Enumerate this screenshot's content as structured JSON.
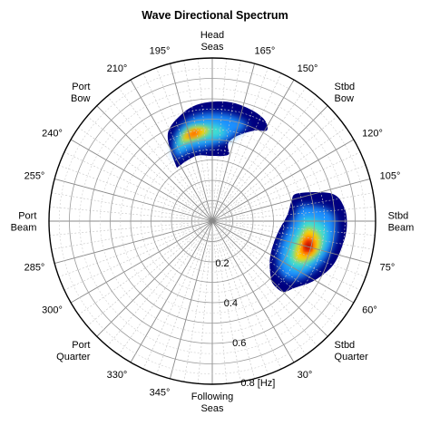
{
  "chart_data": {
    "type": "heatmap",
    "title": "Wave Directional Spectrum",
    "radial_axis": {
      "unit_label": "[Hz]",
      "range": [
        0,
        0.8
      ],
      "ticks": [
        0.2,
        0.4,
        0.6,
        0.8
      ],
      "tick_labels": [
        "0.2",
        "0.4",
        "0.6",
        "0.8 [Hz]"
      ],
      "grid": true
    },
    "angular_axis": {
      "orientation": "180° at top (head seas), angle decreasing clockwise",
      "direction_labels": [
        {
          "angle": 180,
          "text": [
            "Head",
            "Seas"
          ]
        },
        {
          "angle": 135,
          "text": [
            "Stbd",
            "Bow"
          ]
        },
        {
          "angle": 90,
          "text": [
            "Stbd",
            "Beam"
          ]
        },
        {
          "angle": 45,
          "text": [
            "Stbd",
            "Quarter"
          ]
        },
        {
          "angle": 0,
          "text": [
            "Following",
            "Seas"
          ]
        },
        {
          "angle": 315,
          "text": [
            "Port",
            "Quarter"
          ]
        },
        {
          "angle": 270,
          "text": [
            "Port",
            "Beam"
          ]
        },
        {
          "angle": 225,
          "text": [
            "Port",
            "Bow"
          ]
        }
      ],
      "degree_labels": [
        {
          "angle": 165,
          "text": "165°"
        },
        {
          "angle": 150,
          "text": "150°"
        },
        {
          "angle": 120,
          "text": "120°"
        },
        {
          "angle": 105,
          "text": "105°"
        },
        {
          "angle": 75,
          "text": "75°"
        },
        {
          "angle": 60,
          "text": "60°"
        },
        {
          "angle": 30,
          "text": "30°"
        },
        {
          "angle": 345,
          "text": "345°"
        },
        {
          "angle": 330,
          "text": "330°"
        },
        {
          "angle": 300,
          "text": "300°"
        },
        {
          "angle": 285,
          "text": "285°"
        },
        {
          "angle": 255,
          "text": "255°"
        },
        {
          "angle": 240,
          "text": "240°"
        },
        {
          "angle": 210,
          "text": "210°"
        },
        {
          "angle": 195,
          "text": "195°"
        }
      ],
      "minor_spoke_step_deg": 5
    },
    "colormap": "jet",
    "colors": {
      "low": "#00007f",
      "mid_low": "#00b0ff",
      "mid": "#7fff7f",
      "mid_high": "#ffd000",
      "high": "#7f0000"
    },
    "energy_regions": [
      {
        "name_hint": "bow sea",
        "outline": [
          [
            213,
            0.33
          ],
          [
            207,
            0.48
          ],
          [
            195,
            0.55
          ],
          [
            185,
            0.58
          ],
          [
            173,
            0.59
          ],
          [
            162,
            0.58
          ],
          [
            153,
            0.56
          ],
          [
            149,
            0.52
          ],
          [
            155,
            0.49
          ],
          [
            163,
            0.44
          ],
          [
            168,
            0.4
          ],
          [
            168,
            0.37
          ],
          [
            166,
            0.34
          ],
          [
            170,
            0.325
          ],
          [
            181,
            0.32
          ],
          [
            193,
            0.33
          ],
          [
            205,
            0.32
          ],
          [
            211,
            0.315
          ]
        ],
        "levels": [
          {
            "outline": [
              [
                210,
                0.36
              ],
              [
                204,
                0.45
              ],
              [
                194,
                0.51
              ],
              [
                184,
                0.53
              ],
              [
                173,
                0.53
              ],
              [
                165,
                0.52
              ],
              [
                160,
                0.5
              ],
              [
                164,
                0.45
              ],
              [
                168,
                0.41
              ],
              [
                176,
                0.38
              ],
              [
                186,
                0.36
              ],
              [
                198,
                0.36
              ]
            ],
            "color": "#1e90ff"
          },
          {
            "outline": [
              [
                206,
                0.39
              ],
              [
                201,
                0.45
              ],
              [
                193,
                0.48
              ],
              [
                184,
                0.48
              ],
              [
                176,
                0.47
              ],
              [
                171,
                0.44
              ],
              [
                176,
                0.41
              ],
              [
                186,
                0.4
              ],
              [
                196,
                0.4
              ]
            ],
            "color": "#40e0d0"
          },
          {
            "outline": [
              [
                201,
                0.42
              ],
              [
                196,
                0.46
              ],
              [
                189,
                0.47
              ],
              [
                182,
                0.45
              ],
              [
                186,
                0.42
              ],
              [
                195,
                0.41
              ]
            ],
            "color": "#ffd000"
          },
          {
            "outline": [
              [
                197,
                0.43
              ],
              [
                192,
                0.45
              ],
              [
                188,
                0.45
              ],
              [
                190,
                0.43
              ]
            ],
            "color": "#ff4000"
          }
        ]
      },
      {
        "name_hint": "quarter sea",
        "outline": [
          [
            108,
            0.44
          ],
          [
            103,
            0.6
          ],
          [
            96,
            0.65
          ],
          [
            88,
            0.66
          ],
          [
            80,
            0.65
          ],
          [
            70,
            0.63
          ],
          [
            60,
            0.58
          ],
          [
            51,
            0.52
          ],
          [
            45,
            0.49
          ],
          [
            44,
            0.43
          ],
          [
            47,
            0.39
          ],
          [
            56,
            0.34
          ],
          [
            68,
            0.32
          ],
          [
            82,
            0.33
          ],
          [
            95,
            0.37
          ],
          [
            104,
            0.4
          ]
        ],
        "levels": [
          {
            "outline": [
              [
                100,
                0.45
              ],
              [
                95,
                0.58
              ],
              [
                85,
                0.61
              ],
              [
                73,
                0.59
              ],
              [
                61,
                0.54
              ],
              [
                54,
                0.49
              ],
              [
                52,
                0.43
              ],
              [
                58,
                0.38
              ],
              [
                70,
                0.35
              ],
              [
                84,
                0.37
              ],
              [
                95,
                0.41
              ]
            ],
            "color": "#1e90ff"
          },
          {
            "outline": [
              [
                92,
                0.46
              ],
              [
                88,
                0.55
              ],
              [
                79,
                0.57
              ],
              [
                69,
                0.54
              ],
              [
                61,
                0.49
              ],
              [
                60,
                0.43
              ],
              [
                66,
                0.4
              ],
              [
                76,
                0.4
              ],
              [
                87,
                0.43
              ]
            ],
            "color": "#40e0d0"
          },
          {
            "outline": [
              [
                86,
                0.47
              ],
              [
                82,
                0.53
              ],
              [
                74,
                0.54
              ],
              [
                67,
                0.5
              ],
              [
                65,
                0.45
              ],
              [
                70,
                0.43
              ],
              [
                79,
                0.44
              ]
            ],
            "color": "#ffd000"
          },
          {
            "outline": [
              [
                81,
                0.48
              ],
              [
                78,
                0.51
              ],
              [
                73,
                0.51
              ],
              [
                70,
                0.48
              ],
              [
                73,
                0.46
              ],
              [
                78,
                0.46
              ]
            ],
            "color": "#ff3000"
          },
          {
            "outline": [
              [
                78,
                0.49
              ],
              [
                76,
                0.5
              ],
              [
                74,
                0.5
              ],
              [
                73,
                0.48
              ],
              [
                75,
                0.47
              ]
            ],
            "color": "#a00000"
          }
        ]
      }
    ]
  }
}
